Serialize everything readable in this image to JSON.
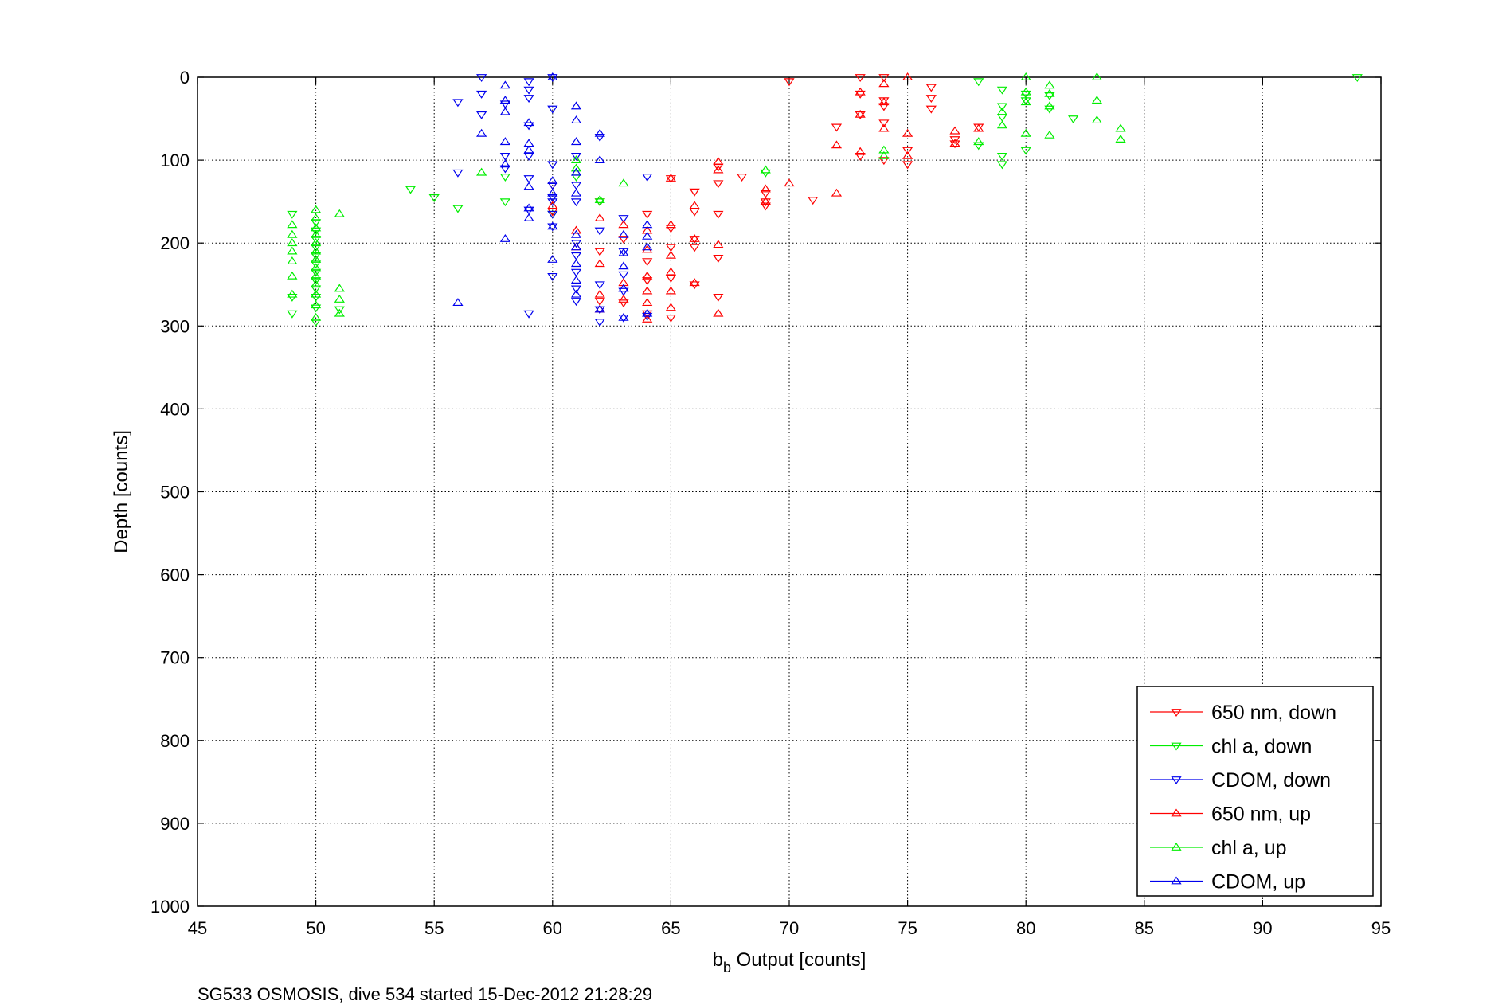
{
  "chart_data": {
    "type": "scatter",
    "title": "",
    "xlabel": "b",
    "xlabel_subscript": "b",
    "xlabel_rest": " Output [counts]",
    "ylabel": "Depth [counts]",
    "caption": "SG533 OSMOSIS, dive 534 started 15-Dec-2012 21:28:29",
    "xlim": [
      45,
      95
    ],
    "ylim": [
      0,
      1000
    ],
    "y_reversed": true,
    "grid": true,
    "legend_position": "bottom-right",
    "xticks": [
      "45",
      "50",
      "55",
      "60",
      "65",
      "70",
      "75",
      "80",
      "85",
      "90",
      "95"
    ],
    "yticks": [
      "0",
      "100",
      "200",
      "300",
      "400",
      "500",
      "600",
      "700",
      "800",
      "900",
      "1000"
    ],
    "series": [
      {
        "name": "650 nm, down",
        "color": "#ff0000",
        "marker": "triangle-down",
        "points": [
          [
            70,
            5
          ],
          [
            73,
            0
          ],
          [
            74,
            0
          ],
          [
            76,
            12
          ],
          [
            76,
            25
          ],
          [
            76,
            38
          ],
          [
            73,
            20
          ],
          [
            74,
            28
          ],
          [
            74,
            35
          ],
          [
            73,
            45
          ],
          [
            74,
            55
          ],
          [
            72,
            60
          ],
          [
            73,
            95
          ],
          [
            74,
            100
          ],
          [
            75,
            88
          ],
          [
            75,
            105
          ],
          [
            77,
            80
          ],
          [
            78,
            60
          ],
          [
            77,
            75
          ],
          [
            68,
            120
          ],
          [
            67,
            108
          ],
          [
            67,
            128
          ],
          [
            66,
            138
          ],
          [
            65,
            122
          ],
          [
            66,
            162
          ],
          [
            67,
            165
          ],
          [
            69,
            140
          ],
          [
            69,
            150
          ],
          [
            69,
            155
          ],
          [
            71,
            148
          ],
          [
            62,
            210
          ],
          [
            63,
            195
          ],
          [
            64,
            222
          ],
          [
            65,
            205
          ],
          [
            66,
            195
          ],
          [
            66,
            205
          ],
          [
            67,
            218
          ],
          [
            64,
            245
          ],
          [
            65,
            242
          ],
          [
            66,
            250
          ],
          [
            67,
            265
          ],
          [
            64,
            285
          ],
          [
            65,
            290
          ],
          [
            63,
            272
          ],
          [
            62,
            270
          ],
          [
            60,
            162
          ],
          [
            62,
            150
          ],
          [
            60,
            130
          ],
          [
            64,
            165
          ],
          [
            65,
            182
          ]
        ]
      },
      {
        "name": "chl a, down",
        "color": "#00ee00",
        "marker": "triangle-down",
        "points": [
          [
            94,
            0
          ],
          [
            78,
            5
          ],
          [
            79,
            15
          ],
          [
            80,
            20
          ],
          [
            80,
            28
          ],
          [
            79,
            35
          ],
          [
            79,
            48
          ],
          [
            81,
            22
          ],
          [
            82,
            50
          ],
          [
            81,
            38
          ],
          [
            79,
            95
          ],
          [
            79,
            105
          ],
          [
            78,
            82
          ],
          [
            80,
            88
          ],
          [
            54,
            135
          ],
          [
            55,
            145
          ],
          [
            56,
            158
          ],
          [
            58,
            120
          ],
          [
            58,
            150
          ],
          [
            61,
            120
          ],
          [
            62,
            150
          ],
          [
            69,
            115
          ],
          [
            60,
            165
          ],
          [
            49,
            165
          ],
          [
            49,
            265
          ],
          [
            49,
            285
          ],
          [
            50,
            175
          ],
          [
            50,
            185
          ],
          [
            50,
            195
          ],
          [
            50,
            205
          ],
          [
            50,
            215
          ],
          [
            50,
            225
          ],
          [
            50,
            235
          ],
          [
            50,
            245
          ],
          [
            50,
            255
          ],
          [
            50,
            265
          ],
          [
            50,
            278
          ],
          [
            50,
            295
          ],
          [
            51,
            280
          ]
        ]
      },
      {
        "name": "CDOM, down",
        "color": "#0000ee",
        "marker": "triangle-down",
        "points": [
          [
            57,
            0
          ],
          [
            59,
            5
          ],
          [
            60,
            0
          ],
          [
            57,
            20
          ],
          [
            59,
            15
          ],
          [
            59,
            25
          ],
          [
            56,
            30
          ],
          [
            57,
            45
          ],
          [
            58,
            32
          ],
          [
            59,
            58
          ],
          [
            60,
            38
          ],
          [
            58,
            95
          ],
          [
            58,
            110
          ],
          [
            59,
            95
          ],
          [
            59,
            122
          ],
          [
            59,
            160
          ],
          [
            60,
            105
          ],
          [
            60,
            130
          ],
          [
            60,
            145
          ],
          [
            60,
            150
          ],
          [
            60,
            165
          ],
          [
            60,
            180
          ],
          [
            61,
            130
          ],
          [
            61,
            95
          ],
          [
            62,
            72
          ],
          [
            61,
            150
          ],
          [
            61,
            200
          ],
          [
            61,
            215
          ],
          [
            61,
            235
          ],
          [
            61,
            255
          ],
          [
            62,
            185
          ],
          [
            62,
            250
          ],
          [
            62,
            280
          ],
          [
            62,
            295
          ],
          [
            63,
            170
          ],
          [
            63,
            210
          ],
          [
            63,
            238
          ],
          [
            63,
            258
          ],
          [
            63,
            290
          ],
          [
            64,
            120
          ],
          [
            64,
            288
          ],
          [
            56,
            115
          ],
          [
            59,
            285
          ],
          [
            60,
            240
          ],
          [
            61,
            270
          ]
        ]
      },
      {
        "name": "650 nm, up",
        "color": "#ff0000",
        "marker": "triangle-up",
        "points": [
          [
            75,
            0
          ],
          [
            73,
            18
          ],
          [
            74,
            8
          ],
          [
            74,
            30
          ],
          [
            73,
            45
          ],
          [
            74,
            62
          ],
          [
            75,
            68
          ],
          [
            72,
            82
          ],
          [
            73,
            90
          ],
          [
            75,
            95
          ],
          [
            77,
            65
          ],
          [
            77,
            80
          ],
          [
            78,
            62
          ],
          [
            72,
            140
          ],
          [
            70,
            128
          ],
          [
            69,
            135
          ],
          [
            69,
            150
          ],
          [
            67,
            102
          ],
          [
            67,
            112
          ],
          [
            66,
            155
          ],
          [
            65,
            122
          ],
          [
            62,
            170
          ],
          [
            63,
            178
          ],
          [
            64,
            185
          ],
          [
            65,
            178
          ],
          [
            66,
            195
          ],
          [
            67,
            202
          ],
          [
            64,
            208
          ],
          [
            65,
            215
          ],
          [
            62,
            262
          ],
          [
            62,
            280
          ],
          [
            63,
            268
          ],
          [
            63,
            248
          ],
          [
            64,
            240
          ],
          [
            64,
            258
          ],
          [
            64,
            272
          ],
          [
            64,
            292
          ],
          [
            65,
            235
          ],
          [
            65,
            258
          ],
          [
            65,
            278
          ],
          [
            66,
            248
          ],
          [
            67,
            285
          ],
          [
            61,
            185
          ],
          [
            61,
            205
          ],
          [
            60,
            155
          ],
          [
            62,
            225
          ]
        ]
      },
      {
        "name": "chl a, up",
        "color": "#00ee00",
        "marker": "triangle-up",
        "points": [
          [
            80,
            0
          ],
          [
            81,
            10
          ],
          [
            81,
            20
          ],
          [
            80,
            18
          ],
          [
            80,
            30
          ],
          [
            81,
            35
          ],
          [
            79,
            42
          ],
          [
            79,
            58
          ],
          [
            78,
            78
          ],
          [
            80,
            68
          ],
          [
            81,
            70
          ],
          [
            83,
            0
          ],
          [
            83,
            28
          ],
          [
            83,
            52
          ],
          [
            84,
            62
          ],
          [
            84,
            75
          ],
          [
            74,
            88
          ],
          [
            74,
            95
          ],
          [
            57,
            115
          ],
          [
            61,
            100
          ],
          [
            61,
            110
          ],
          [
            62,
            148
          ],
          [
            63,
            128
          ],
          [
            69,
            112
          ],
          [
            49,
            178
          ],
          [
            49,
            190
          ],
          [
            49,
            200
          ],
          [
            49,
            210
          ],
          [
            49,
            222
          ],
          [
            49,
            240
          ],
          [
            49,
            262
          ],
          [
            50,
            160
          ],
          [
            50,
            170
          ],
          [
            50,
            182
          ],
          [
            50,
            190
          ],
          [
            50,
            200
          ],
          [
            50,
            210
          ],
          [
            50,
            220
          ],
          [
            50,
            230
          ],
          [
            50,
            240
          ],
          [
            50,
            250
          ],
          [
            50,
            262
          ],
          [
            50,
            275
          ],
          [
            50,
            290
          ],
          [
            51,
            165
          ],
          [
            51,
            255
          ],
          [
            51,
            268
          ],
          [
            51,
            285
          ]
        ]
      },
      {
        "name": "CDOM, up",
        "color": "#0000ee",
        "marker": "triangle-up",
        "points": [
          [
            58,
            10
          ],
          [
            58,
            28
          ],
          [
            58,
            42
          ],
          [
            59,
            55
          ],
          [
            59,
            80
          ],
          [
            59,
            88
          ],
          [
            60,
            0
          ],
          [
            57,
            68
          ],
          [
            58,
            78
          ],
          [
            61,
            35
          ],
          [
            61,
            52
          ],
          [
            61,
            78
          ],
          [
            62,
            68
          ],
          [
            62,
            100
          ],
          [
            58,
            105
          ],
          [
            58,
            195
          ],
          [
            59,
            132
          ],
          [
            59,
            158
          ],
          [
            59,
            170
          ],
          [
            60,
            125
          ],
          [
            60,
            140
          ],
          [
            60,
            180
          ],
          [
            60,
            220
          ],
          [
            61,
            115
          ],
          [
            61,
            140
          ],
          [
            61,
            190
          ],
          [
            61,
            205
          ],
          [
            61,
            225
          ],
          [
            61,
            245
          ],
          [
            61,
            262
          ],
          [
            62,
            280
          ],
          [
            63,
            190
          ],
          [
            63,
            212
          ],
          [
            63,
            228
          ],
          [
            63,
            255
          ],
          [
            63,
            290
          ],
          [
            64,
            178
          ],
          [
            64,
            192
          ],
          [
            64,
            205
          ],
          [
            64,
            285
          ],
          [
            56,
            272
          ]
        ]
      }
    ]
  }
}
